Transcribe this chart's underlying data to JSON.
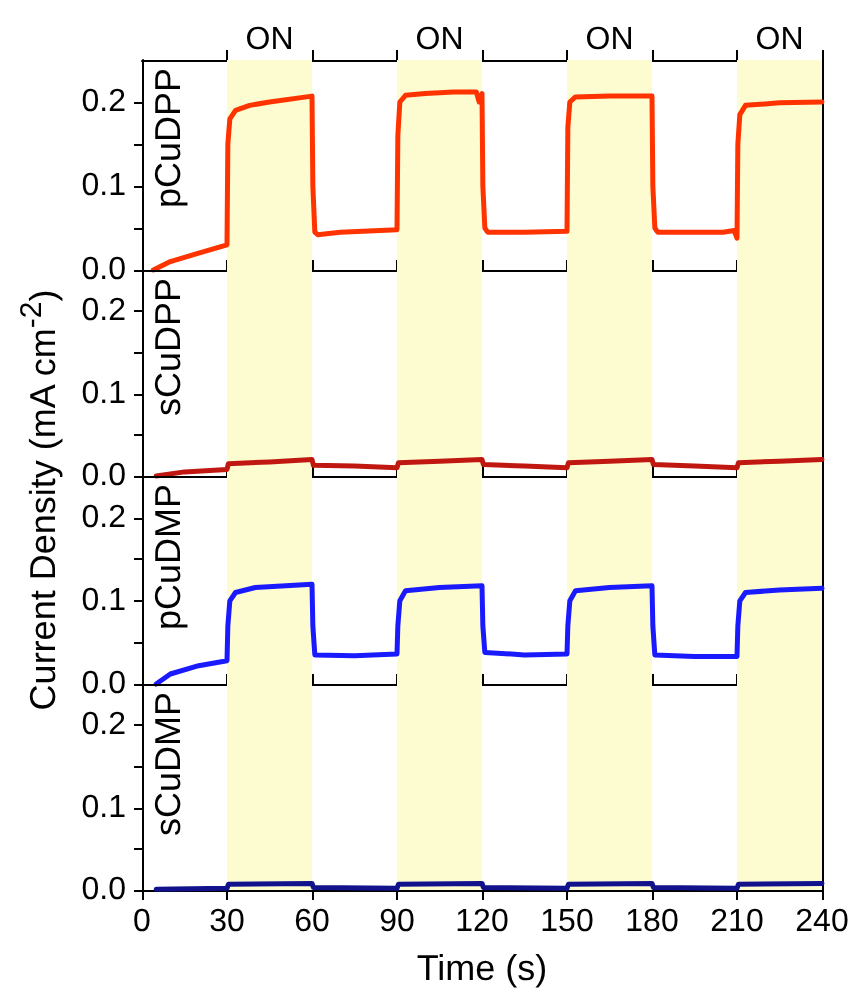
{
  "chart_data": [
    {
      "type": "line",
      "tick_labels": "y",
      "grid": false,
      "marker": "none",
      "legend": false,
      "xlim": [
        0,
        240
      ],
      "xticks": [
        0,
        30,
        60,
        90,
        120,
        150,
        180,
        210,
        240
      ],
      "ylim": [
        0,
        0.25
      ],
      "yticks": [
        {
          "value": 0,
          "label": "0.0"
        },
        {
          "value": 0.05,
          "label": null
        },
        {
          "value": 0.1,
          "label": "0.1"
        },
        {
          "value": 0.15,
          "label": null
        },
        {
          "value": 0.2,
          "label": "0.2"
        }
      ],
      "bands": [
        {
          "axis": "x",
          "from": 30,
          "to": 60,
          "label": "ON",
          "color": "#fdfbd0"
        },
        {
          "axis": "x",
          "from": 90,
          "to": 120,
          "label": "ON",
          "color": "#fdfbd0"
        },
        {
          "axis": "x",
          "from": 150,
          "to": 180,
          "label": "ON",
          "color": "#fdfbd0"
        },
        {
          "axis": "x",
          "from": 210,
          "to": 240,
          "label": "ON",
          "color": "#fdfbd0"
        }
      ],
      "series": [
        {
          "name": "pCuDPP",
          "color": "#ff3300",
          "x": [
            4,
            10,
            20,
            30,
            30.3,
            31,
            33,
            38,
            45,
            60,
            60.3,
            61,
            62,
            70,
            90,
            90.3,
            91,
            93,
            100,
            110,
            118,
            119,
            120,
            120.3,
            121,
            122,
            135,
            150,
            150.3,
            151,
            153,
            165,
            180,
            180.3,
            181,
            182,
            195,
            205,
            209,
            210,
            210.3,
            211,
            213,
            225,
            240
          ],
          "values": [
            0,
            0.01,
            0.02,
            0.03,
            0.15,
            0.18,
            0.19,
            0.196,
            0.2,
            0.207,
            0.1,
            0.045,
            0.042,
            0.045,
            0.048,
            0.16,
            0.2,
            0.208,
            0.21,
            0.212,
            0.212,
            0.2,
            0.21,
            0.1,
            0.05,
            0.045,
            0.045,
            0.046,
            0.17,
            0.2,
            0.206,
            0.207,
            0.207,
            0.1,
            0.05,
            0.045,
            0.045,
            0.045,
            0.047,
            0.038,
            0.15,
            0.185,
            0.196,
            0.199,
            0.2
          ]
        }
      ]
    },
    {
      "type": "line",
      "tick_labels": "y",
      "grid": false,
      "marker": "none",
      "legend": false,
      "ylabel": "Current Density (mA cm$^{-2}$)",
      "xlim": [
        0,
        240
      ],
      "xticks": [
        0,
        30,
        60,
        90,
        120,
        150,
        180,
        210,
        240
      ],
      "ylim": [
        0,
        0.25
      ],
      "yticks": [
        {
          "value": 0,
          "label": "0.0"
        },
        {
          "value": 0.05,
          "label": null
        },
        {
          "value": 0.1,
          "label": "0.1"
        },
        {
          "value": 0.15,
          "label": null
        },
        {
          "value": 0.2,
          "label": "0.2"
        }
      ],
      "bands": [
        {
          "axis": "x",
          "from": 30,
          "to": 60,
          "color": "#fdfbd0"
        },
        {
          "axis": "x",
          "from": 90,
          "to": 120,
          "color": "#fdfbd0"
        },
        {
          "axis": "x",
          "from": 150,
          "to": 180,
          "color": "#fdfbd0"
        },
        {
          "axis": "x",
          "from": 210,
          "to": 240,
          "color": "#fdfbd0"
        }
      ],
      "series": [
        {
          "name": "sCuDPP",
          "color": "#c01810",
          "x": [
            5,
            15,
            30,
            30.5,
            45,
            60,
            60.5,
            75,
            90,
            90.5,
            105,
            120,
            120.5,
            135,
            150,
            150.5,
            165,
            180,
            180.5,
            195,
            210,
            210.5,
            225,
            240
          ],
          "values": [
            0,
            0.005,
            0.008,
            0.015,
            0.017,
            0.02,
            0.013,
            0.012,
            0.01,
            0.016,
            0.018,
            0.02,
            0.014,
            0.012,
            0.01,
            0.016,
            0.018,
            0.02,
            0.014,
            0.012,
            0.01,
            0.016,
            0.018,
            0.02
          ]
        }
      ]
    },
    {
      "type": "line",
      "tick_labels": "y",
      "grid": false,
      "marker": "none",
      "legend": false,
      "xlim": [
        0,
        240
      ],
      "xticks": [
        0,
        30,
        60,
        90,
        120,
        150,
        180,
        210,
        240
      ],
      "ylim": [
        0,
        0.25
      ],
      "yticks": [
        {
          "value": 0,
          "label": "0.0"
        },
        {
          "value": 0.05,
          "label": null
        },
        {
          "value": 0.1,
          "label": "0.1"
        },
        {
          "value": 0.15,
          "label": null
        },
        {
          "value": 0.2,
          "label": "0.2"
        }
      ],
      "bands": [
        {
          "axis": "x",
          "from": 30,
          "to": 60,
          "color": "#fdfbd0"
        },
        {
          "axis": "x",
          "from": 90,
          "to": 120,
          "color": "#fdfbd0"
        },
        {
          "axis": "x",
          "from": 150,
          "to": 180,
          "color": "#fdfbd0"
        },
        {
          "axis": "x",
          "from": 210,
          "to": 240,
          "color": "#fdfbd0"
        }
      ],
      "series": [
        {
          "name": "pCuDMP",
          "color": "#1a1aff",
          "x": [
            5,
            10,
            20,
            30,
            30.3,
            31,
            33,
            40,
            60,
            60.3,
            61,
            75,
            90,
            90.3,
            91,
            93,
            105,
            120,
            120.3,
            121,
            135,
            150,
            150.3,
            151,
            153,
            165,
            180,
            180.3,
            181,
            195,
            210,
            210.3,
            211,
            213,
            225,
            240
          ],
          "values": [
            0,
            0.012,
            0.022,
            0.028,
            0.07,
            0.1,
            0.11,
            0.116,
            0.12,
            0.07,
            0.035,
            0.034,
            0.036,
            0.07,
            0.1,
            0.112,
            0.116,
            0.118,
            0.07,
            0.038,
            0.035,
            0.036,
            0.07,
            0.1,
            0.112,
            0.116,
            0.118,
            0.07,
            0.035,
            0.033,
            0.033,
            0.07,
            0.1,
            0.11,
            0.113,
            0.115
          ]
        }
      ]
    },
    {
      "type": "line",
      "grid": false,
      "marker": "none",
      "legend": false,
      "xlabel": "Time (s)",
      "xlim": [
        0,
        240
      ],
      "xticks": [
        0,
        30,
        60,
        90,
        120,
        150,
        180,
        210,
        240
      ],
      "ylim": [
        0,
        0.25
      ],
      "yticks": [
        {
          "value": 0,
          "label": "0.0"
        },
        {
          "value": 0.05,
          "label": null
        },
        {
          "value": 0.1,
          "label": "0.1"
        },
        {
          "value": 0.15,
          "label": null
        },
        {
          "value": 0.2,
          "label": "0.2"
        }
      ],
      "bands": [
        {
          "axis": "x",
          "from": 30,
          "to": 60,
          "color": "#fdfbd0"
        },
        {
          "axis": "x",
          "from": 90,
          "to": 120,
          "color": "#fdfbd0"
        },
        {
          "axis": "x",
          "from": 150,
          "to": 180,
          "color": "#fdfbd0"
        },
        {
          "axis": "x",
          "from": 210,
          "to": 240,
          "color": "#fdfbd0"
        }
      ],
      "series": [
        {
          "name": "sCuDMP",
          "color": "#12128c",
          "x": [
            5,
            30,
            30.5,
            60,
            60.5,
            90,
            90.5,
            120,
            120.5,
            150,
            150.5,
            180,
            180.5,
            210,
            210.5,
            240
          ],
          "values": [
            0.001,
            0.002,
            0.007,
            0.008,
            0.003,
            0.002,
            0.007,
            0.008,
            0.003,
            0.002,
            0.007,
            0.008,
            0.003,
            0.002,
            0.007,
            0.008
          ]
        }
      ]
    }
  ]
}
